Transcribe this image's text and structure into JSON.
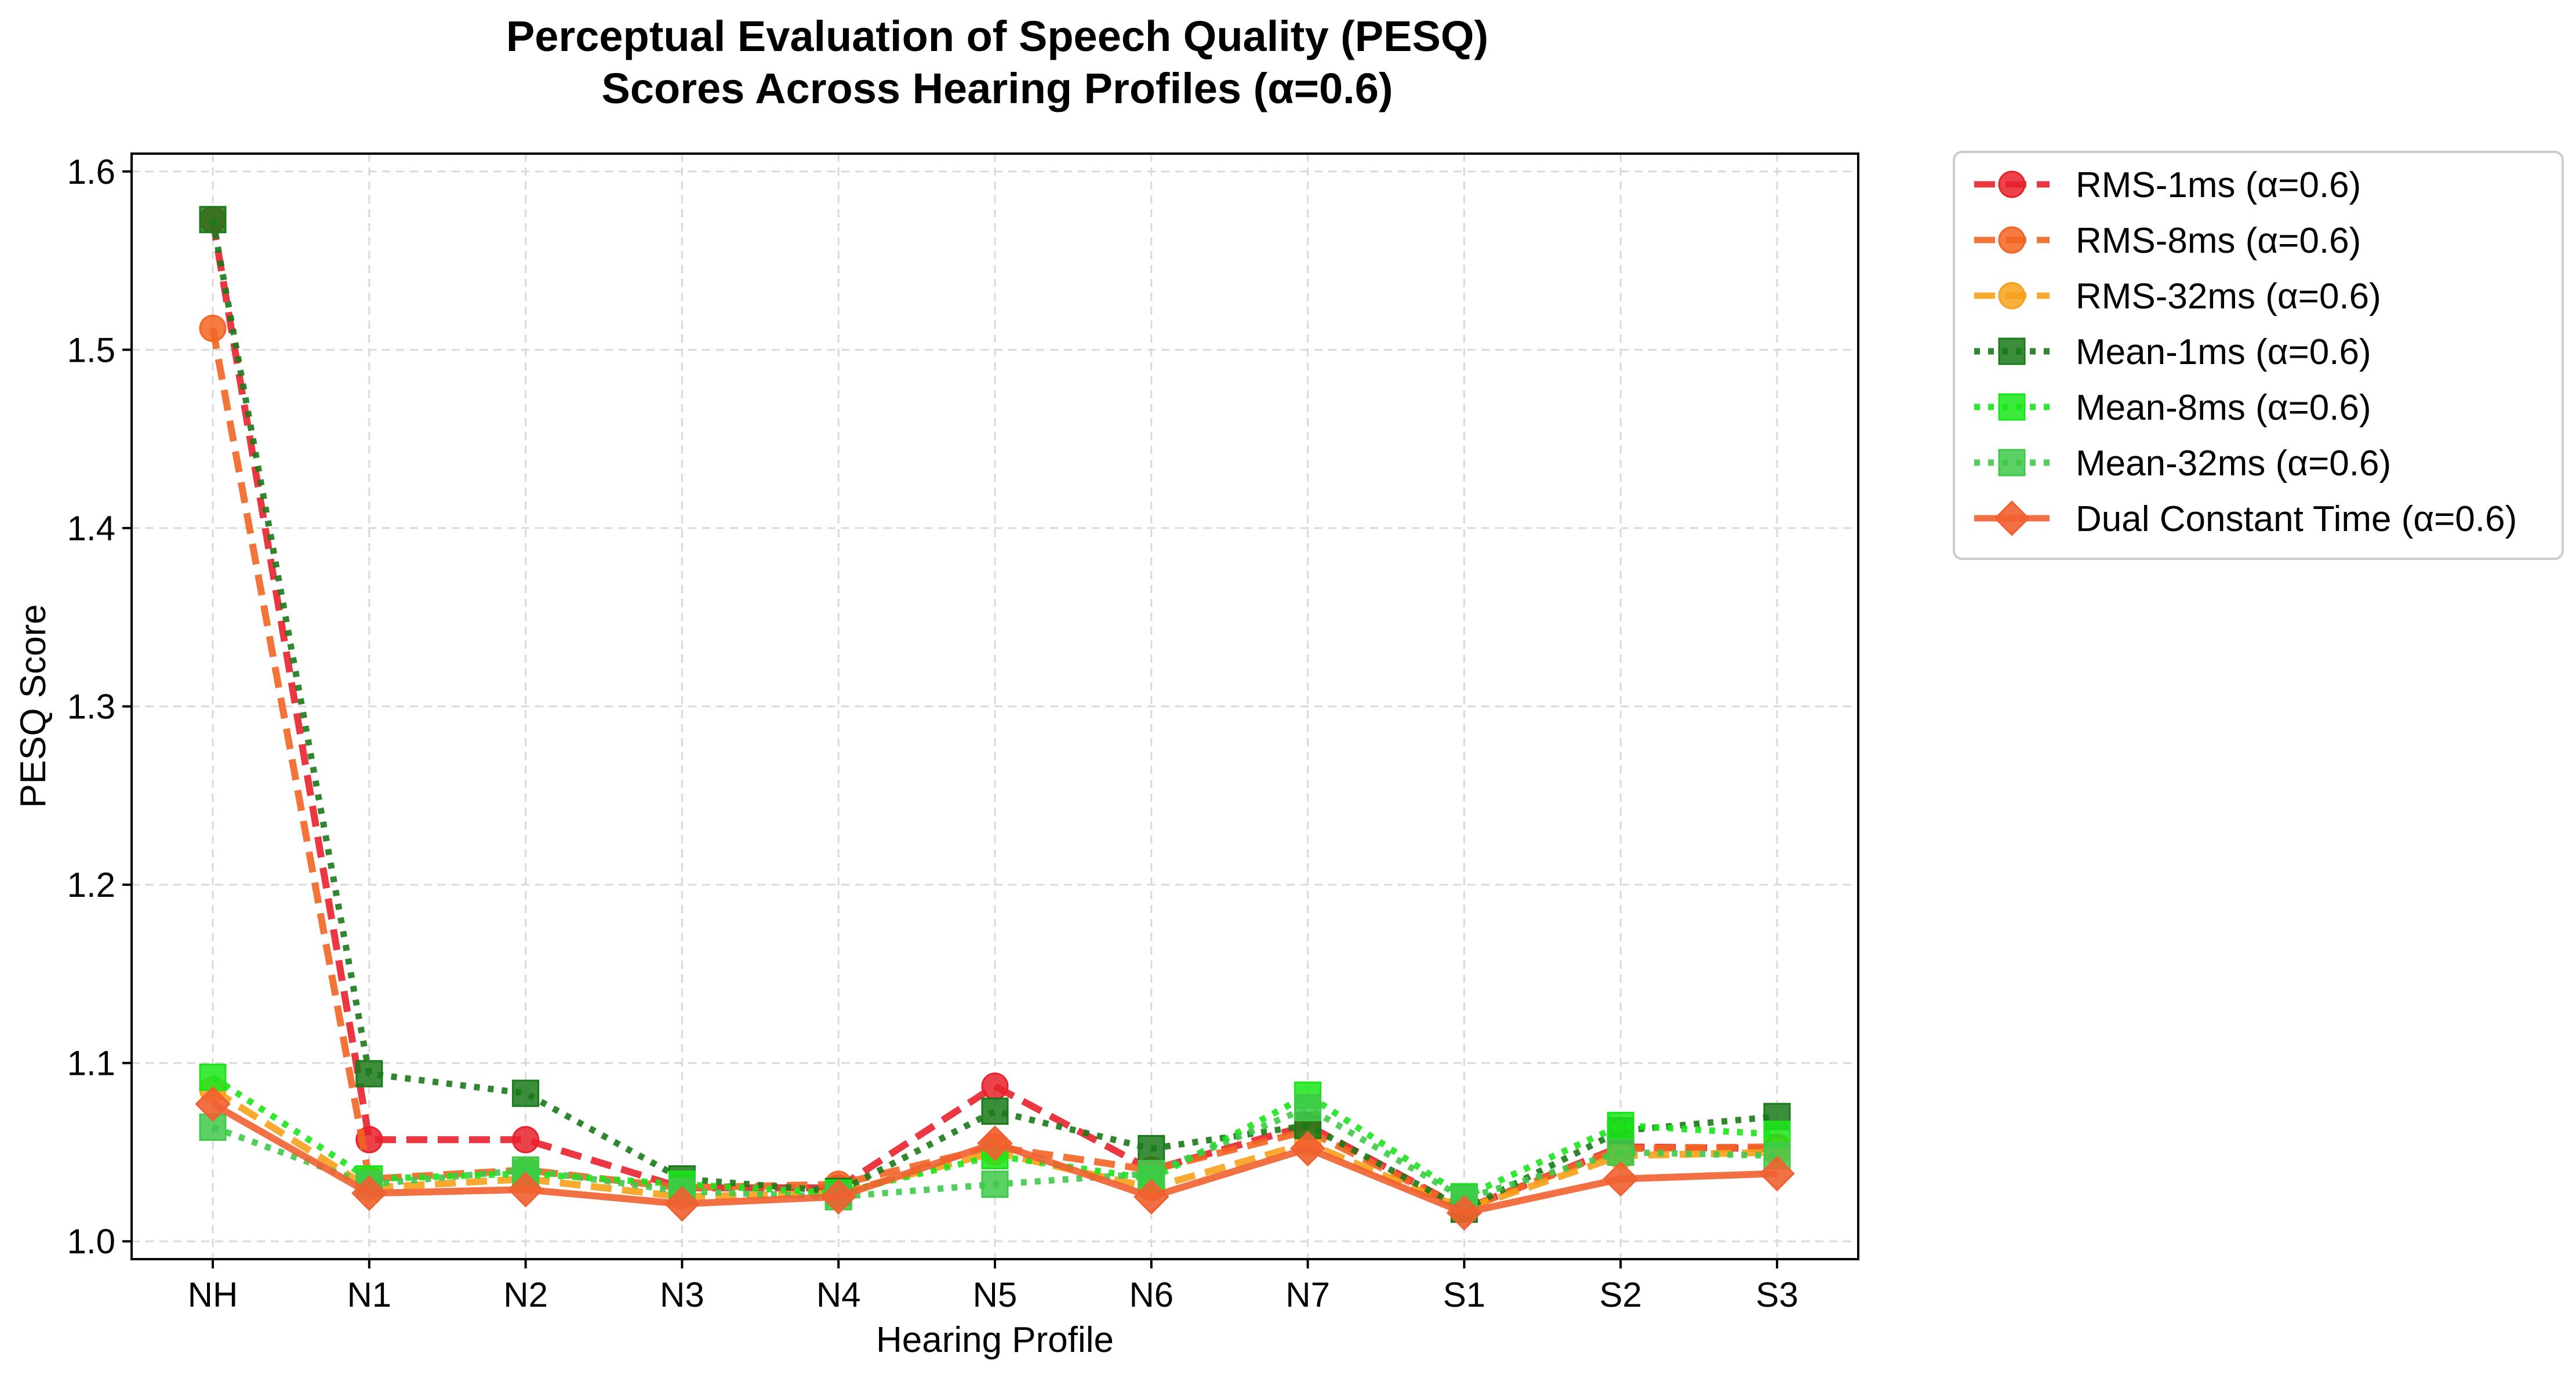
{
  "chart_data": {
    "type": "line",
    "title_line1": "Perceptual Evaluation of Speech Quality (PESQ)",
    "title_line2": "Scores Across Hearing Profiles (α=0.6)",
    "xlabel": "Hearing Profile",
    "ylabel": "PESQ Score",
    "categories": [
      "NH",
      "N1",
      "N2",
      "N3",
      "N4",
      "N5",
      "N6",
      "N7",
      "S1",
      "S2",
      "S3"
    ],
    "ylim": [
      0.99,
      1.61
    ],
    "yticks": [
      "1.0",
      "1.1",
      "1.2",
      "1.3",
      "1.4",
      "1.5",
      "1.6"
    ],
    "grid": true,
    "legend_position": "outside-right",
    "series": [
      {
        "name": "RMS-1ms (α=0.6)",
        "color": "#e8212d",
        "marker": "circle",
        "linestyle": "dashed",
        "values": [
          1.573,
          1.057,
          1.057,
          1.03,
          1.03,
          1.087,
          1.04,
          1.065,
          1.018,
          1.053,
          1.052
        ]
      },
      {
        "name": "RMS-8ms (α=0.6)",
        "color": "#f26522",
        "marker": "circle",
        "linestyle": "dashed",
        "values": [
          1.512,
          1.035,
          1.04,
          1.03,
          1.032,
          1.053,
          1.04,
          1.062,
          1.018,
          1.052,
          1.053
        ]
      },
      {
        "name": "RMS-32ms (α=0.6)",
        "color": "#f7a11a",
        "marker": "circle",
        "linestyle": "dashed",
        "values": [
          1.085,
          1.03,
          1.035,
          1.025,
          1.027,
          1.05,
          1.03,
          1.055,
          1.018,
          1.048,
          1.05
        ]
      },
      {
        "name": "Mean-1ms (α=0.6)",
        "color": "#1a7a1a",
        "marker": "square",
        "linestyle": "dotted",
        "values": [
          1.573,
          1.094,
          1.083,
          1.035,
          1.028,
          1.073,
          1.052,
          1.065,
          1.018,
          1.062,
          1.07
        ]
      },
      {
        "name": "Mean-8ms (α=0.6)",
        "color": "#19e619",
        "marker": "square",
        "linestyle": "dotted",
        "values": [
          1.092,
          1.035,
          1.038,
          1.032,
          1.027,
          1.048,
          1.035,
          1.082,
          1.025,
          1.065,
          1.06
        ]
      },
      {
        "name": "Mean-32ms (α=0.6)",
        "color": "#3fc94a",
        "marker": "square",
        "linestyle": "dotted",
        "values": [
          1.064,
          1.032,
          1.04,
          1.028,
          1.025,
          1.032,
          1.038,
          1.075,
          1.024,
          1.05,
          1.048
        ]
      },
      {
        "name": "Dual Constant Time (α=0.6)",
        "color": "#f06030",
        "marker": "diamond",
        "linestyle": "solid",
        "values": [
          1.077,
          1.027,
          1.029,
          1.021,
          1.025,
          1.055,
          1.025,
          1.052,
          1.016,
          1.035,
          1.038
        ]
      }
    ]
  }
}
